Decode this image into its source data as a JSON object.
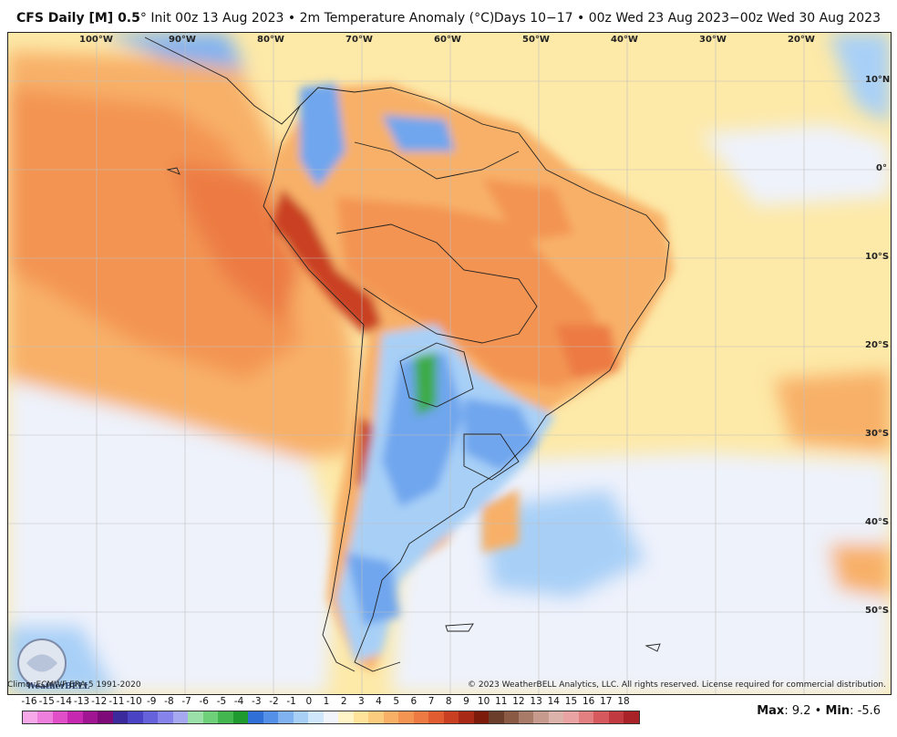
{
  "header": {
    "model": "CFS Daily [M] 0.5",
    "degree": "°",
    "init": "Init 00z 13 Aug 2023",
    "variable": "2m Temperature Anomaly (°C)",
    "sep": "•",
    "right": "Days 10−17 • 00z Wed 23 Aug 2023−00z Wed 30 Aug 2023"
  },
  "lon_labels": [
    "100°W",
    "90°W",
    "80°W",
    "70°W",
    "60°W",
    "50°W",
    "40°W",
    "30°W",
    "20°W"
  ],
  "lat_labels": [
    "10°N",
    "0°",
    "10°S",
    "20°S",
    "30°S",
    "40°S",
    "50°S"
  ],
  "footer": {
    "climo": "Climo: ECMWF ERA-5 1991-2020",
    "copyright": "© 2023 WeatherBELL Analytics, LLC. All rights reserved. License required for commercial distribution.",
    "logo_text": "WeatherBELL"
  },
  "legend": {
    "ticks": [
      "-16",
      "-15",
      "-14",
      "-13",
      "-12",
      "-11",
      "-10",
      "-9",
      "-8",
      "-7",
      "-6",
      "-5",
      "-4",
      "-3",
      "-2",
      "-1",
      "0",
      "1",
      "2",
      "3",
      "4",
      "5",
      "6",
      "7",
      "8",
      "9",
      "10",
      "11",
      "12",
      "13",
      "14",
      "15",
      "16",
      "17",
      "18"
    ],
    "colors": [
      "#f7a8e8",
      "#ef7fdc",
      "#e04fc8",
      "#c629b0",
      "#a01592",
      "#7d0a78",
      "#3b2a9c",
      "#4a43c4",
      "#6562dc",
      "#8684ea",
      "#a6a8f0",
      "#9be0a8",
      "#6fd07a",
      "#44b64f",
      "#1f9a2f",
      "#2f6fd6",
      "#5590e8",
      "#80b2f2",
      "#a8d0f7",
      "#cfe6fb",
      "#f2f4fb",
      "#fff4c8",
      "#ffe39a",
      "#fccc7e",
      "#f8b067",
      "#f39453",
      "#ec7a42",
      "#e15c31",
      "#c93f22",
      "#a82a16",
      "#7c1a0c",
      "#6b3e2c",
      "#8b5a44",
      "#a87a68",
      "#c69a8c",
      "#dbb3aa",
      "#e9a3a3",
      "#e27f80",
      "#d65a5d",
      "#c03a40",
      "#a82228"
    ],
    "max_label": "Max",
    "max": "9.2",
    "min_label": "Min",
    "min": "-5.6"
  },
  "map_colors": {
    "ocean_warm": "#fde9a8",
    "ocean_light": "#fbf7e8",
    "ocean_cool": "#eef2fb",
    "land_warm": "#f6a26a",
    "land_hot": "#e8673d",
    "land_core": "#c63b1f",
    "cold_light": "#a8d0f7",
    "cold_mid": "#6fa6ee",
    "cold_deep": "#3c78dc",
    "green": "#3cab47",
    "border": "#222222"
  }
}
